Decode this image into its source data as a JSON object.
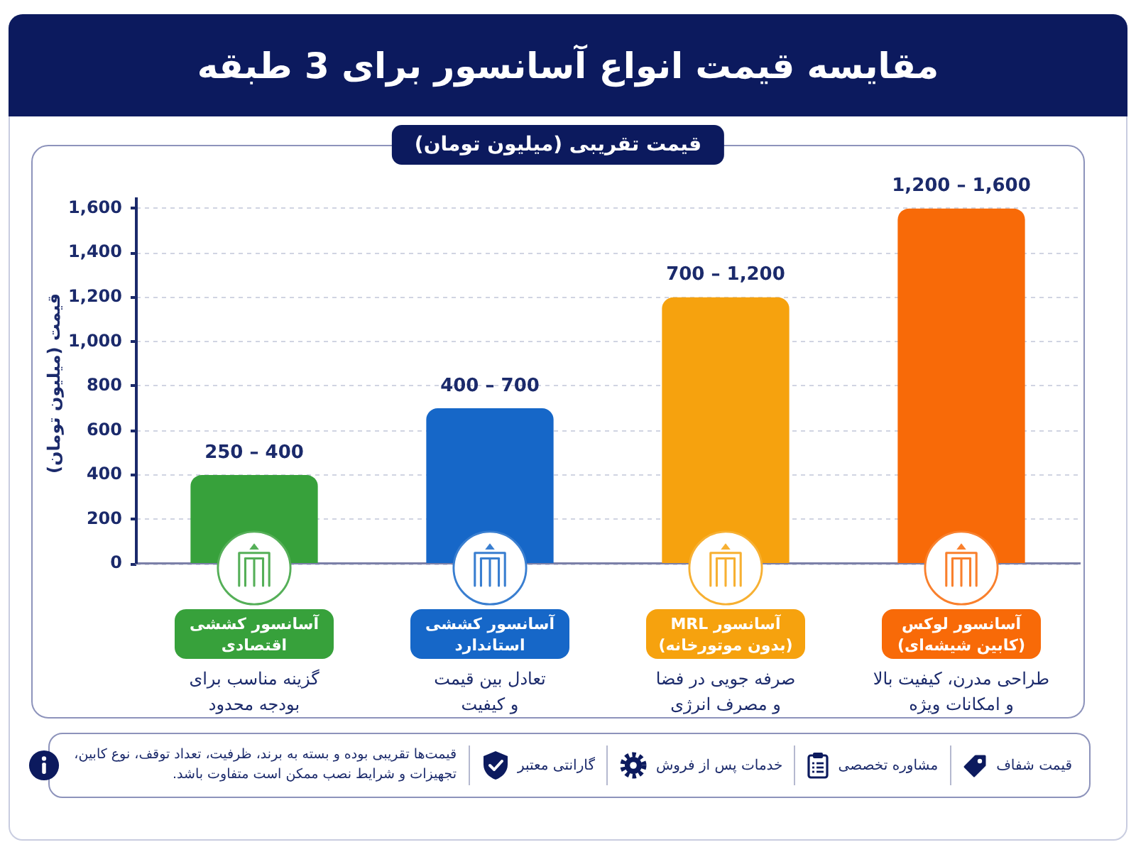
{
  "chart_data": {
    "type": "bar",
    "title": "مقایسه قیمت انواع آسانسور برای 3 طبقه",
    "subtitle": "قیمت تقریبی (میلیون تومان)",
    "ylabel": "قیمت (میلیون تومان)",
    "categories": [
      "آسانسور کششی\nاقتصادی",
      "آسانسور کششی\nاستاندارد",
      "آسانسور MRL\n(بدون موتورخانه)",
      "آسانسور لوکس\n(کابین شیشه‌ای)"
    ],
    "values": [
      400,
      700,
      1200,
      1600
    ],
    "colors": [
      "#37a13b",
      "#1667c8",
      "#f6a20e",
      "#f86a08"
    ],
    "ylim": [
      0,
      1650
    ],
    "yticks": [
      0,
      200,
      400,
      600,
      800,
      {
        "value": 1000,
        "label": "1,000"
      },
      {
        "value": 1200,
        "label": "1,200"
      },
      {
        "value": 1400,
        "label": "1,400"
      },
      {
        "value": 1600,
        "label": "1,600"
      }
    ],
    "grid": "y",
    "annotations": [
      {
        "text": "250 – 400",
        "x": "آسانسور کششی\nاقتصادی",
        "y": 400
      },
      {
        "text": "400 – 700",
        "x": "آسانسور کششی\nاستاندارد",
        "y": 700
      },
      {
        "text": "700 – 1,200",
        "x": "آسانسور MRL\n(بدون موتورخانه)",
        "y": 1200
      },
      {
        "text": "1,200 – 1,600",
        "x": "آسانسور لوکس\n(کابین شیشه‌ای)",
        "y": 1600
      },
      "گزینه مناسب برای\nبودجه محدود",
      "تعادل بین قیمت\nو کیفیت",
      "صرفه جویی در فضا\nو مصرف انرژی",
      "طراحی مدرن، کیفیت بالا\nو امکانات ویژه",
      "قیمت شفاف",
      "مشاوره تخصصی",
      "خدمات پس از فروش",
      "گارانتی معتبر",
      "قیمت‌ها تقریبی بوده و بسته به برند، ظرفیت، تعداد توقف، نوع کابین،\nتجهیزات و شرایط نصب ممکن است متفاوت باشد."
    ]
  }
}
